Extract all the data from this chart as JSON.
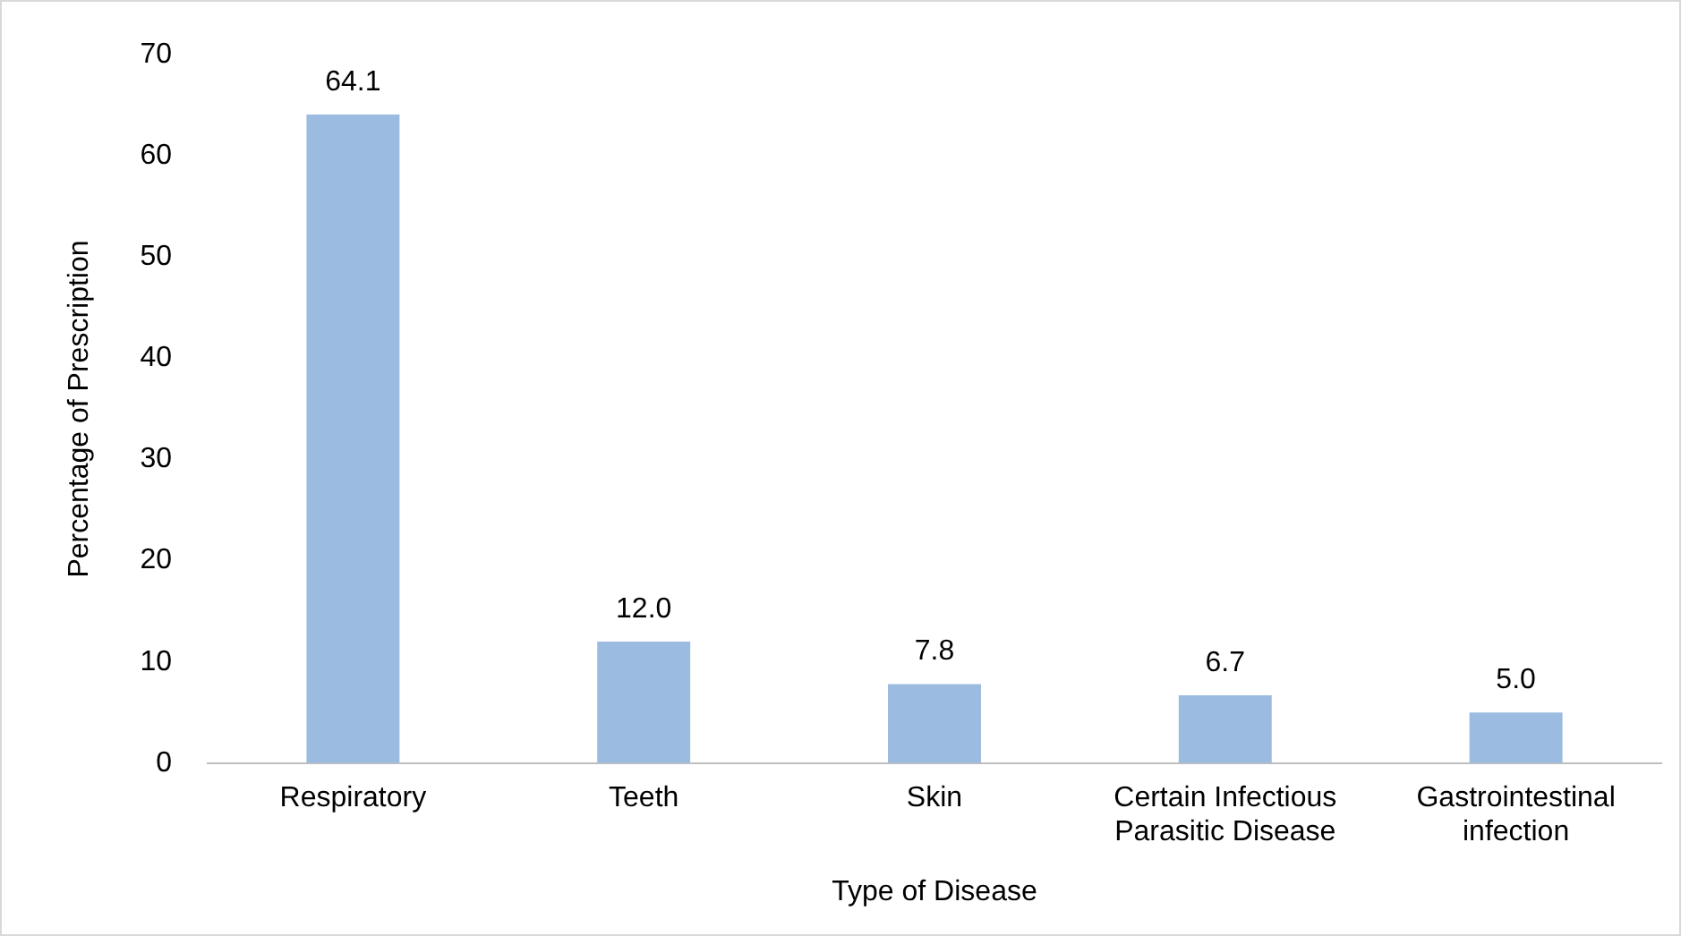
{
  "chart_data": {
    "type": "bar",
    "xlabel": "Type of Disease",
    "ylabel": "Percentage of Prescription",
    "categories": [
      "Respiratory",
      "Teeth",
      "Skin",
      "Certain Infectious Parasitic Disease",
      "Gastrointestinal infection"
    ],
    "values": [
      64.1,
      12.0,
      7.8,
      6.7,
      5.0
    ],
    "value_labels": [
      "64.1",
      "12.0",
      "7.8",
      "6.7",
      "5.0"
    ],
    "color": "#9bbbe0",
    "ylim": [
      0,
      70
    ],
    "yticks": [
      0,
      10,
      20,
      30,
      40,
      50,
      60,
      70
    ],
    "grid": false,
    "legend": false
  }
}
